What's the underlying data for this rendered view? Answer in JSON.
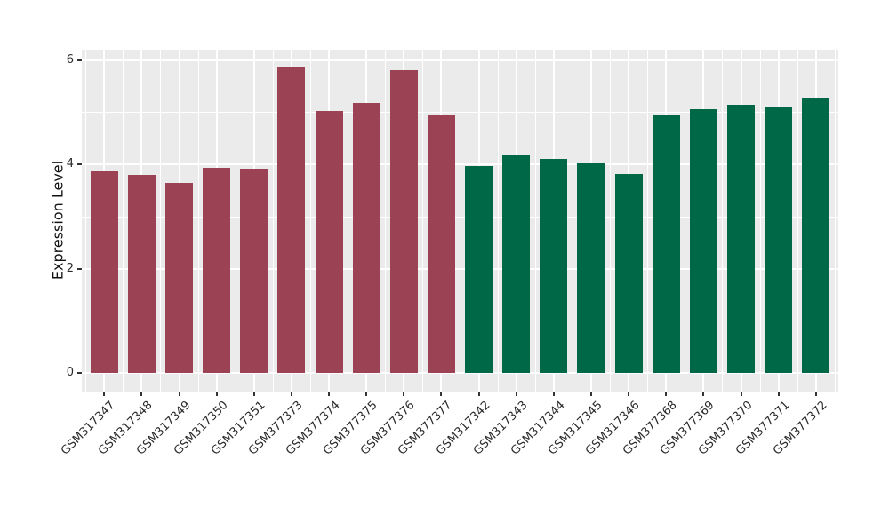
{
  "chart_data": {
    "type": "bar",
    "title": "",
    "xlabel": "",
    "ylabel": "Expression Level",
    "categories": [
      "GSM317347",
      "GSM317348",
      "GSM317349",
      "GSM317350",
      "GSM317351",
      "GSM377373",
      "GSM377374",
      "GSM377375",
      "GSM377376",
      "GSM377377",
      "GSM317342",
      "GSM317343",
      "GSM317344",
      "GSM317345",
      "GSM317346",
      "GSM377368",
      "GSM377369",
      "GSM377370",
      "GSM377371",
      "GSM377372"
    ],
    "values": [
      3.87,
      3.79,
      3.64,
      3.94,
      3.91,
      5.88,
      5.02,
      5.17,
      5.81,
      4.96,
      3.96,
      4.17,
      4.1,
      4.02,
      3.82,
      4.96,
      5.06,
      5.14,
      5.1,
      5.28
    ],
    "bar_groups": [
      "group1",
      "group1",
      "group1",
      "group1",
      "group1",
      "group1",
      "group1",
      "group1",
      "group1",
      "group1",
      "group2",
      "group2",
      "group2",
      "group2",
      "group2",
      "group2",
      "group2",
      "group2",
      "group2",
      "group2"
    ],
    "group_colors": {
      "group1": "#9C4255",
      "group2": "#006847"
    },
    "yticks": [
      0,
      2,
      4,
      6
    ],
    "ytick_labels": [
      "0",
      "2",
      "4",
      "6"
    ],
    "minor_yticks": [
      1,
      3,
      5
    ],
    "ylim": [
      -0.36,
      6.17
    ],
    "grid": "on",
    "legend": "none",
    "panel_background": "#EBEBEB",
    "grid_color": "#FFFFFF",
    "axis_text_color": "#2b2b2b"
  }
}
